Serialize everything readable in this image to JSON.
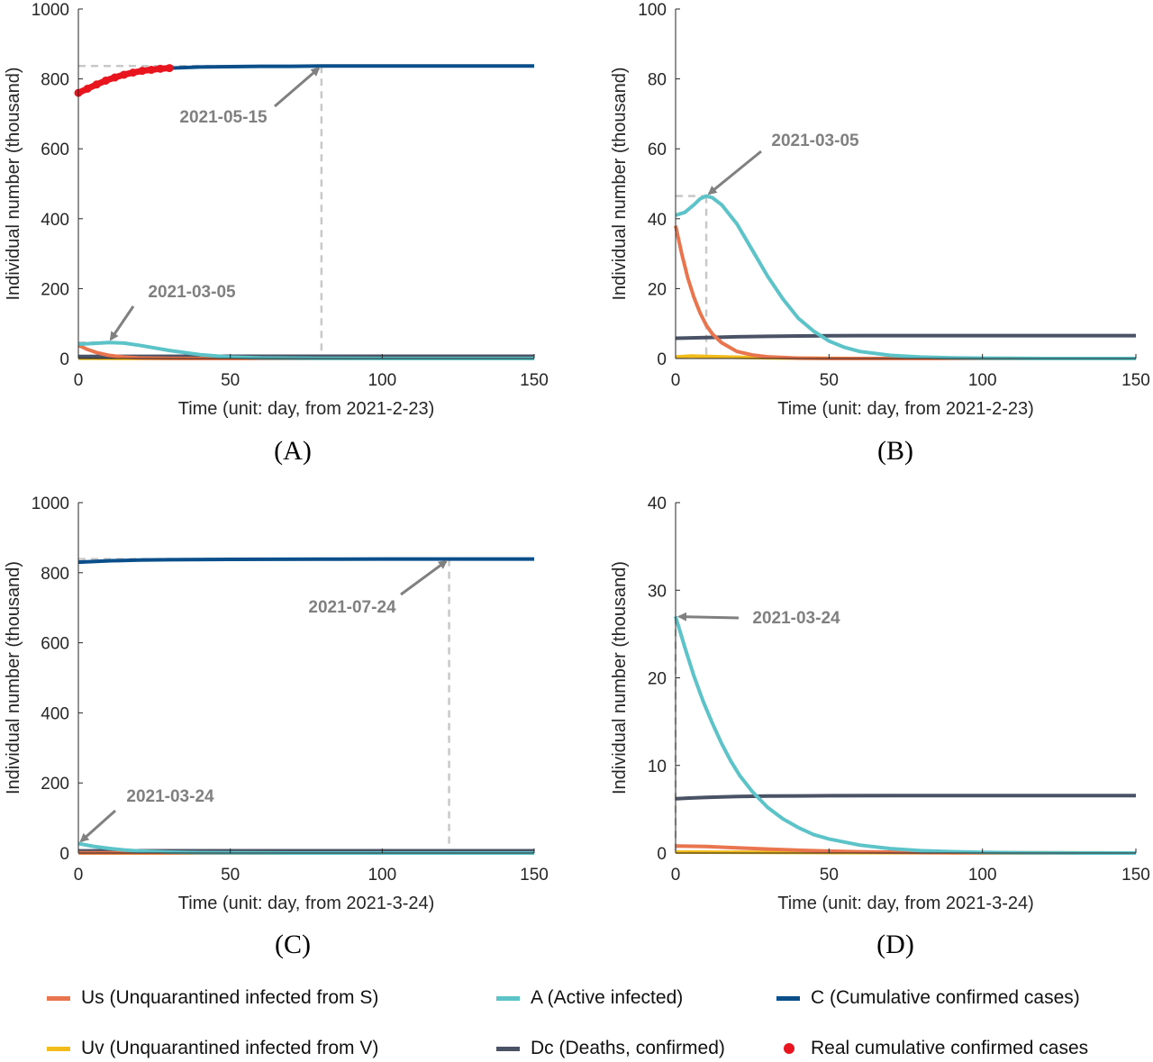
{
  "colors": {
    "Us": "#E8754D",
    "A": "#5CC3C8",
    "C": "#0B4F8A",
    "Uv": "#F2BC1A",
    "Dc": "#4A5366",
    "Real": "#E8141E",
    "annotation": "#808080",
    "guide": "#C8C8C8"
  },
  "legend": [
    {
      "key": "Us",
      "label": "Us (Unquarantined infected from S)",
      "kind": "line"
    },
    {
      "key": "A",
      "label": "A (Active infected)",
      "kind": "line"
    },
    {
      "key": "C",
      "label": "C (Cumulative confirmed cases)",
      "kind": "line"
    },
    {
      "key": "Uv",
      "label": "Uv (Unquarantined infected from V)",
      "kind": "line"
    },
    {
      "key": "Dc",
      "label": "Dc (Deaths, confirmed)",
      "kind": "line"
    },
    {
      "key": "Real",
      "label": "Real cumulative confirmed cases",
      "kind": "dot"
    }
  ],
  "chart_data": [
    {
      "id": "A",
      "type": "line",
      "panel_label": "(A)",
      "xlabel": "Time (unit: day, from 2021-2-23)",
      "ylabel": "Individual number (thousand)",
      "xlim": [
        0,
        150
      ],
      "ylim": [
        0,
        1000
      ],
      "xticks": [
        0,
        50,
        100,
        150
      ],
      "yticks": [
        0,
        200,
        400,
        600,
        800,
        1000
      ],
      "series": [
        {
          "key": "C",
          "x": [
            0,
            5,
            10,
            15,
            20,
            25,
            30,
            40,
            50,
            60,
            70,
            80,
            100,
            120,
            150
          ],
          "y": [
            760,
            784,
            802,
            815,
            823,
            828,
            831,
            834,
            835,
            836,
            836,
            837,
            837,
            837,
            837
          ]
        },
        {
          "key": "A",
          "x": [
            0,
            5,
            10,
            15,
            20,
            30,
            40,
            50,
            60,
            80,
            100,
            150
          ],
          "y": [
            41,
            43,
            46,
            44,
            38,
            23,
            11,
            4,
            1.5,
            0.3,
            0.1,
            0
          ]
        },
        {
          "key": "Us",
          "x": [
            0,
            3,
            6,
            10,
            15,
            20,
            30,
            40,
            150
          ],
          "y": [
            38,
            26,
            17,
            9,
            4,
            1.5,
            0.3,
            0.1,
            0
          ]
        },
        {
          "key": "Dc",
          "x": [
            0,
            20,
            50,
            100,
            150
          ],
          "y": [
            5.8,
            6.3,
            6.5,
            6.5,
            6.5
          ]
        },
        {
          "key": "Uv",
          "x": [
            0,
            5,
            10,
            20,
            40,
            150
          ],
          "y": [
            0.5,
            0.7,
            0.6,
            0.3,
            0.1,
            0
          ]
        },
        {
          "key": "Real",
          "kind": "points",
          "x": [
            0,
            3,
            6,
            9,
            12,
            15,
            18,
            21,
            24,
            27,
            30
          ],
          "y": [
            760,
            772,
            784,
            795,
            804,
            812,
            818,
            823,
            826,
            829,
            831
          ]
        }
      ],
      "annotations": [
        {
          "text": "2021-05-15",
          "x": 80,
          "y": 837
        },
        {
          "text": "2021-03-05",
          "x": 10,
          "y": 46
        }
      ]
    },
    {
      "id": "B",
      "type": "line",
      "panel_label": "(B)",
      "xlabel": "Time (unit: day, from 2021-2-23)",
      "ylabel": "Individual number (thousand)",
      "xlim": [
        0,
        150
      ],
      "ylim": [
        0,
        100
      ],
      "xticks": [
        0,
        50,
        100,
        150
      ],
      "yticks": [
        0,
        20,
        40,
        60,
        80,
        100
      ],
      "series": [
        {
          "key": "A",
          "x": [
            0,
            3,
            6,
            8,
            10,
            12,
            15,
            20,
            25,
            30,
            35,
            40,
            45,
            50,
            55,
            60,
            70,
            80,
            90,
            100,
            110,
            120,
            135,
            150
          ],
          "y": [
            41,
            41.8,
            44,
            45.7,
            46.5,
            46,
            44,
            38.5,
            31,
            23.5,
            17,
            11.5,
            7.8,
            5,
            3.2,
            2,
            0.9,
            0.4,
            0.2,
            0.1,
            0.05,
            0,
            0,
            0
          ]
        },
        {
          "key": "Us",
          "x": [
            0,
            2,
            4,
            6,
            8,
            10,
            12,
            15,
            20,
            25,
            30,
            40,
            50,
            150
          ],
          "y": [
            38,
            30,
            23,
            17.5,
            13,
            9.5,
            7,
            4.5,
            2,
            1,
            0.5,
            0.1,
            0,
            0
          ]
        },
        {
          "key": "Dc",
          "x": [
            0,
            10,
            20,
            30,
            40,
            50,
            60,
            80,
            100,
            150
          ],
          "y": [
            5.8,
            6.0,
            6.2,
            6.35,
            6.45,
            6.5,
            6.55,
            6.55,
            6.55,
            6.55
          ]
        },
        {
          "key": "Uv",
          "x": [
            0,
            5,
            10,
            20,
            30,
            40,
            60,
            150
          ],
          "y": [
            0.4,
            0.7,
            0.6,
            0.35,
            0.2,
            0.1,
            0,
            0
          ]
        }
      ],
      "annotations": [
        {
          "text": "2021-03-05",
          "x": 10,
          "y": 46.5
        }
      ]
    },
    {
      "id": "C",
      "type": "line",
      "panel_label": "(C)",
      "xlabel": "Time (unit: day, from 2021-3-24)",
      "ylabel": "Individual number (thousand)",
      "xlim": [
        0,
        150
      ],
      "ylim": [
        0,
        1000
      ],
      "xticks": [
        0,
        50,
        100,
        150
      ],
      "yticks": [
        0,
        200,
        400,
        600,
        800,
        1000
      ],
      "series": [
        {
          "key": "C",
          "x": [
            0,
            10,
            20,
            30,
            50,
            80,
            100,
            122,
            150
          ],
          "y": [
            830,
            834,
            836,
            837,
            838,
            838.5,
            839,
            839,
            839
          ]
        },
        {
          "key": "A",
          "x": [
            0,
            5,
            10,
            15,
            20,
            30,
            40,
            50,
            70,
            100,
            150
          ],
          "y": [
            27,
            19,
            13,
            8.7,
            5.7,
            2.5,
            1.1,
            0.5,
            0.1,
            0,
            0
          ]
        },
        {
          "key": "Dc",
          "x": [
            0,
            20,
            50,
            100,
            150
          ],
          "y": [
            6.2,
            6.4,
            6.5,
            6.5,
            6.5
          ]
        },
        {
          "key": "Us",
          "x": [
            0,
            10,
            20,
            40,
            60,
            150
          ],
          "y": [
            0.8,
            0.75,
            0.5,
            0.2,
            0.05,
            0
          ]
        },
        {
          "key": "Uv",
          "x": [
            0,
            50,
            150
          ],
          "y": [
            0.1,
            0.05,
            0
          ]
        }
      ],
      "annotations": [
        {
          "text": "2021-07-24",
          "x": 122,
          "y": 839
        },
        {
          "text": "2021-03-24",
          "x": 0,
          "y": 27
        }
      ]
    },
    {
      "id": "D",
      "type": "line",
      "panel_label": "(D)",
      "xlabel": "Time (unit: day, from 2021-3-24)",
      "ylabel": "Individual number (thousand)",
      "xlim": [
        0,
        150
      ],
      "ylim": [
        0,
        40
      ],
      "xticks": [
        0,
        50,
        100,
        150
      ],
      "yticks": [
        0,
        10,
        20,
        30,
        40
      ],
      "series": [
        {
          "key": "A",
          "x": [
            0,
            3,
            6,
            9,
            12,
            15,
            18,
            21,
            25,
            30,
            35,
            40,
            45,
            50,
            60,
            70,
            80,
            90,
            100,
            110,
            120,
            135,
            150
          ],
          "y": [
            27,
            23.5,
            20.2,
            17.3,
            14.8,
            12.5,
            10.5,
            8.8,
            7,
            5.2,
            3.9,
            2.9,
            2.1,
            1.6,
            0.9,
            0.5,
            0.27,
            0.15,
            0.08,
            0.04,
            0.02,
            0,
            0
          ]
        },
        {
          "key": "Dc",
          "x": [
            0,
            10,
            20,
            30,
            40,
            50,
            70,
            100,
            150
          ],
          "y": [
            6.2,
            6.35,
            6.45,
            6.5,
            6.52,
            6.54,
            6.55,
            6.55,
            6.55
          ]
        },
        {
          "key": "Us",
          "x": [
            0,
            10,
            20,
            30,
            40,
            50,
            60,
            80,
            100,
            150
          ],
          "y": [
            0.8,
            0.75,
            0.6,
            0.45,
            0.32,
            0.22,
            0.14,
            0.05,
            0.02,
            0
          ]
        },
        {
          "key": "Uv",
          "x": [
            0,
            50,
            100,
            150
          ],
          "y": [
            0.1,
            0.05,
            0.02,
            0
          ]
        }
      ],
      "annotations": [
        {
          "text": "2021-03-24",
          "x": 0,
          "y": 27
        }
      ]
    }
  ]
}
